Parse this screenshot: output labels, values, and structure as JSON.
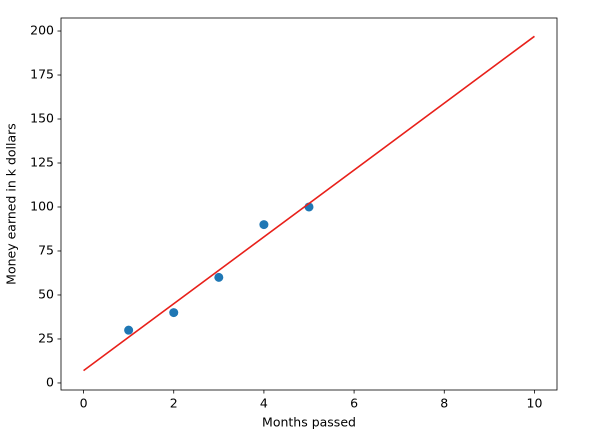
{
  "chart_data": {
    "type": "scatter",
    "xlabel": "Months passed",
    "ylabel": "Money earned in k dollars",
    "xlim": [
      -0.5,
      10.5
    ],
    "ylim": [
      -4,
      207.4
    ],
    "xticks": [
      0,
      2,
      4,
      6,
      8,
      10
    ],
    "yticks": [
      0,
      25,
      50,
      75,
      100,
      125,
      150,
      175,
      200
    ],
    "series": [
      {
        "type": "scatter",
        "color": "#1f77b4",
        "x": [
          1,
          2,
          3,
          4,
          5
        ],
        "values": [
          30,
          40,
          60,
          90,
          100
        ]
      },
      {
        "type": "line",
        "color": "#e8201a",
        "x": [
          0,
          10
        ],
        "values": [
          7,
          197
        ]
      }
    ]
  }
}
